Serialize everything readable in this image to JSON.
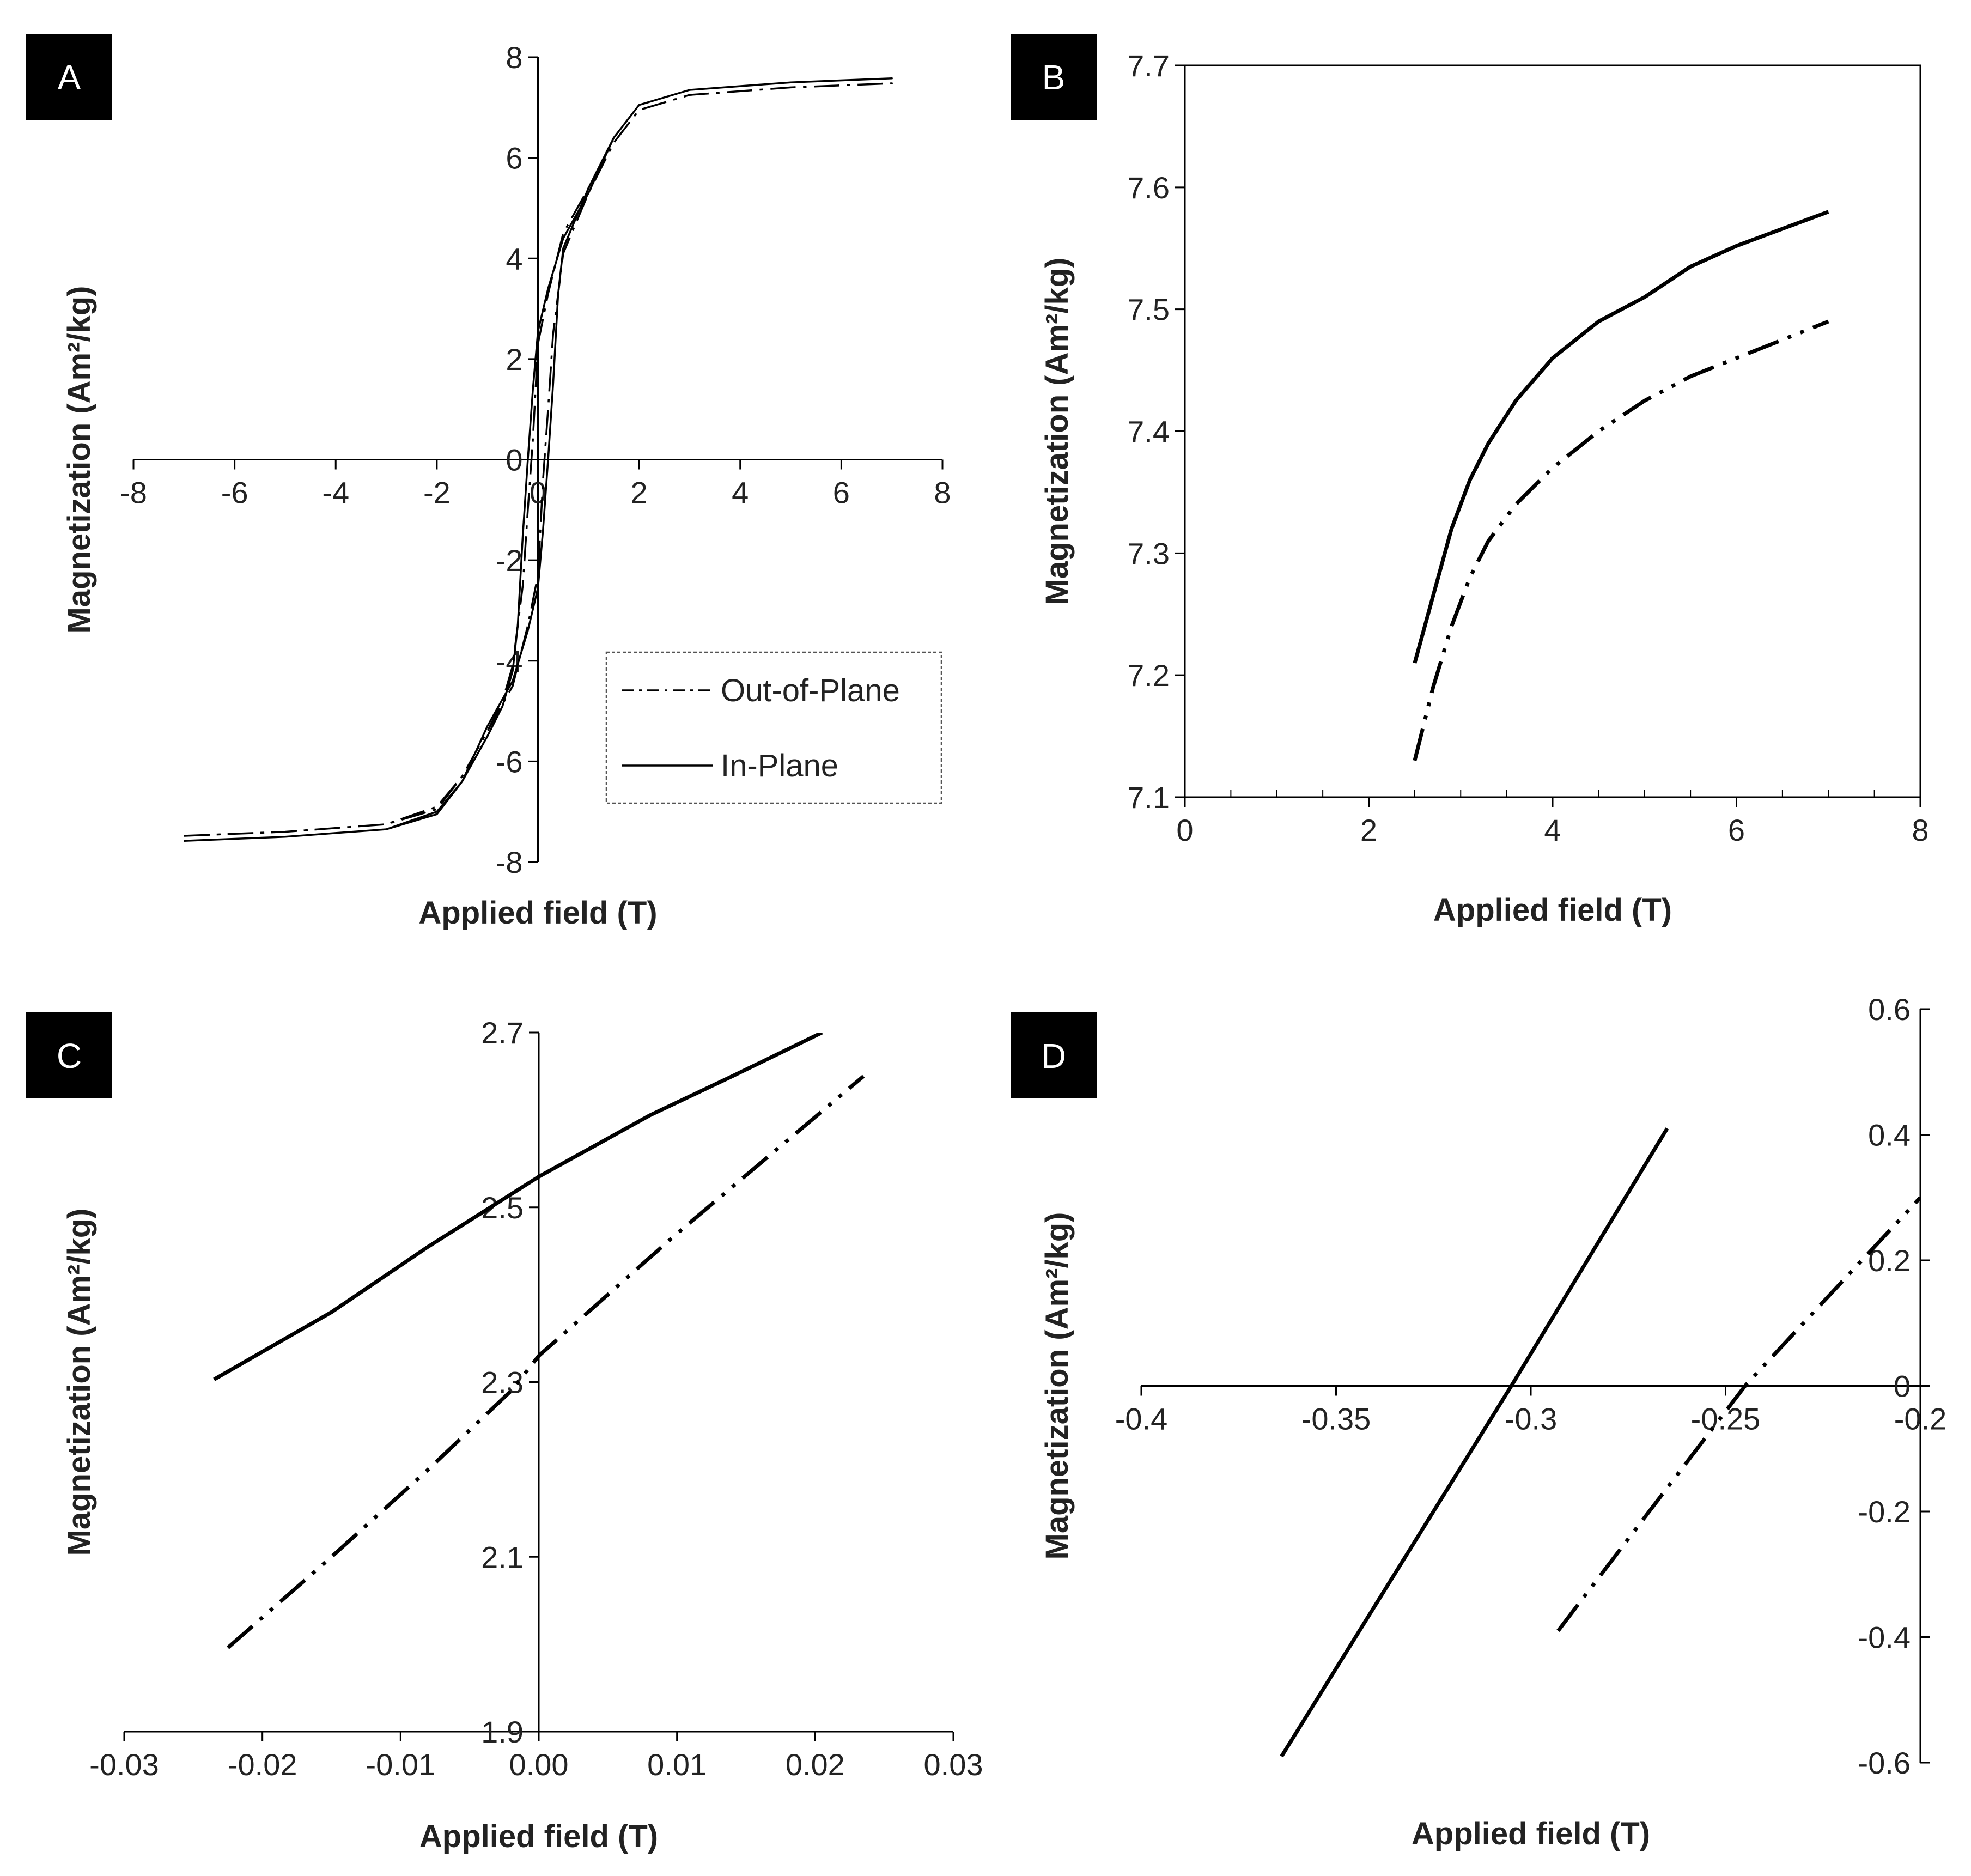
{
  "figure": {
    "colors": {
      "line": "#000000",
      "axis": "#000000",
      "badge_bg": "#000000",
      "badge_text": "#ffffff",
      "legend_border": "#555555"
    }
  },
  "chart_data": [
    {
      "panel": "A",
      "type": "line",
      "xlabel": "Applied field (T)",
      "ylabel": "Magnetization (Am²/kg)",
      "xlim": [
        -8,
        8
      ],
      "ylim": [
        -8,
        8
      ],
      "xticks": [
        -8,
        -6,
        -4,
        -2,
        0,
        2,
        4,
        6,
        8
      ],
      "yticks": [
        -8,
        -6,
        -4,
        -2,
        0,
        2,
        4,
        6,
        8
      ],
      "x_tick_labels": [
        "-8",
        "-6",
        "-4",
        "-2",
        "0",
        "2",
        "4",
        "6",
        "8"
      ],
      "y_tick_labels": [
        "-8",
        "-6",
        "-4",
        "-2",
        "0",
        "2",
        "4",
        "6",
        "8"
      ],
      "axes_cross_at_origin": true,
      "box": false,
      "legend": {
        "position": "bottom-right",
        "entries": [
          "Out-of-Plane",
          "In-Plane"
        ]
      },
      "series": [
        {
          "name": "Out-of-Plane",
          "style": "dash-dot",
          "x": [
            -7,
            -5,
            -3,
            -2,
            -1.5,
            -1,
            -0.7,
            -0.5,
            -0.3,
            -0.2,
            -0.1,
            0,
            0.2,
            0.5,
            1,
            1.5,
            2,
            3,
            5,
            7,
            7,
            5,
            3,
            2,
            1.5,
            1,
            0.5,
            0.3,
            0.2,
            0.1,
            0,
            -0.2,
            -0.5,
            -1,
            -1.5,
            -2,
            -3,
            -5,
            -7
          ],
          "y": [
            -7.48,
            -7.4,
            -7.25,
            -6.9,
            -6.3,
            -5.4,
            -4.8,
            -4.1,
            -2.5,
            -1.0,
            0.4,
            2.3,
            3.3,
            4.5,
            5.4,
            6.3,
            6.95,
            7.25,
            7.4,
            7.48,
            7.48,
            7.4,
            7.25,
            6.95,
            6.3,
            5.3,
            4.1,
            2.5,
            1.0,
            -0.4,
            -2.3,
            -3.3,
            -4.5,
            -5.4,
            -6.3,
            -6.95,
            -7.25,
            -7.4,
            -7.48
          ]
        },
        {
          "name": "In-Plane",
          "style": "solid",
          "x": [
            -7,
            -5,
            -3,
            -2,
            -1.5,
            -1,
            -0.7,
            -0.5,
            -0.4,
            -0.3,
            -0.2,
            -0.1,
            0,
            0.2,
            0.5,
            1,
            1.5,
            2,
            3,
            5,
            7,
            7,
            5,
            3,
            2,
            1.5,
            1,
            0.5,
            0.4,
            0.3,
            0.2,
            0.1,
            0,
            -0.2,
            -0.5,
            -1,
            -1.5,
            -2,
            -3,
            -5,
            -7
          ],
          "y": [
            -7.58,
            -7.5,
            -7.35,
            -7.0,
            -6.4,
            -5.5,
            -4.9,
            -4.2,
            -3.3,
            -1.5,
            0.0,
            1.4,
            2.55,
            3.4,
            4.4,
            5.3,
            6.4,
            7.05,
            7.35,
            7.5,
            7.58,
            7.58,
            7.5,
            7.35,
            7.05,
            6.4,
            5.4,
            4.2,
            3.3,
            1.5,
            0.0,
            -1.4,
            -2.55,
            -3.4,
            -4.4,
            -5.3,
            -6.4,
            -7.05,
            -7.35,
            -7.5,
            -7.58
          ]
        }
      ]
    },
    {
      "panel": "B",
      "type": "line",
      "xlabel": "Applied field (T)",
      "ylabel": "Magnetization (Am²/kg)",
      "xlim": [
        0,
        8
      ],
      "ylim": [
        7.1,
        7.7
      ],
      "xticks": [
        0,
        2,
        4,
        6,
        8
      ],
      "yticks": [
        7.1,
        7.2,
        7.3,
        7.4,
        7.5,
        7.6,
        7.7
      ],
      "x_tick_labels": [
        "0",
        "2",
        "4",
        "6",
        "8"
      ],
      "y_tick_labels": [
        "7.1",
        "7.2",
        "7.3",
        "7.4",
        "7.5",
        "7.6",
        "7.7"
      ],
      "axes_cross_at_origin": false,
      "box": true,
      "series": [
        {
          "name": "In-Plane",
          "style": "solid",
          "x": [
            2.5,
            2.7,
            2.9,
            3.1,
            3.3,
            3.6,
            4.0,
            4.5,
            5.0,
            5.5,
            6.0,
            6.5,
            7.0
          ],
          "y": [
            7.21,
            7.265,
            7.32,
            7.36,
            7.39,
            7.425,
            7.46,
            7.49,
            7.51,
            7.535,
            7.552,
            7.566,
            7.58
          ]
        },
        {
          "name": "Out-of-Plane",
          "style": "dash-dot-dot",
          "x": [
            2.5,
            2.7,
            2.9,
            3.1,
            3.3,
            3.6,
            4.0,
            4.5,
            5.0,
            5.5,
            6.0,
            6.5,
            7.0
          ],
          "y": [
            7.13,
            7.19,
            7.24,
            7.28,
            7.31,
            7.34,
            7.37,
            7.4,
            7.425,
            7.445,
            7.46,
            7.475,
            7.49
          ]
        }
      ]
    },
    {
      "panel": "C",
      "type": "line",
      "xlabel": "Applied field (T)",
      "ylabel": "Magnetization (Am²/kg)",
      "xlim": [
        -0.03,
        0.03
      ],
      "ylim": [
        1.9,
        2.7
      ],
      "xticks": [
        -0.03,
        -0.02,
        -0.01,
        0,
        0.01,
        0.02,
        0.03
      ],
      "yticks": [
        1.9,
        2.1,
        2.3,
        2.5,
        2.7
      ],
      "x_tick_labels": [
        "-0.03",
        "-0.02",
        "-0.01",
        "0.00",
        "0.01",
        "0.02",
        "0.03"
      ],
      "y_tick_labels": [
        "1.9",
        "2.1",
        "2.3",
        "2.5",
        "2.7"
      ],
      "axes_cross_at_origin": true,
      "box": false,
      "series": [
        {
          "name": "In-Plane",
          "style": "solid",
          "x": [
            -0.0235,
            -0.015,
            -0.008,
            -0.002,
            0,
            0.004,
            0.008,
            0.014,
            0.0205
          ],
          "y": [
            2.303,
            2.38,
            2.455,
            2.515,
            2.535,
            2.57,
            2.605,
            2.65,
            2.7
          ]
        },
        {
          "name": "Out-of-Plane",
          "style": "dash-dot-dot",
          "x": [
            -0.0225,
            -0.015,
            -0.008,
            -0.002,
            0,
            0.005,
            0.01,
            0.016,
            0.0235
          ],
          "y": [
            1.996,
            2.1,
            2.2,
            2.29,
            2.33,
            2.4,
            2.47,
            2.55,
            2.65
          ]
        }
      ]
    },
    {
      "panel": "D",
      "type": "line",
      "xlabel": "Applied field (T)",
      "ylabel": "Magnetization (Am²/kg)",
      "xlim": [
        -0.4,
        -0.2
      ],
      "ylim": [
        -0.6,
        0.6
      ],
      "xticks": [
        -0.4,
        -0.35,
        -0.3,
        -0.25,
        -0.2
      ],
      "yticks": [
        -0.6,
        -0.4,
        -0.2,
        0,
        0.2,
        0.4,
        0.6
      ],
      "x_tick_labels": [
        "-0.4",
        "-0.35",
        "-0.3",
        "-0.25",
        "-0.2"
      ],
      "y_tick_labels": [
        "-0.6",
        "-0.4",
        "-0.2",
        "0",
        "0.2",
        "0.4",
        "0.6"
      ],
      "axes_cross_at_origin": true,
      "box": false,
      "yaxis_side": "right",
      "series": [
        {
          "name": "In-Plane",
          "style": "solid",
          "x": [
            -0.364,
            -0.305,
            -0.265
          ],
          "y": [
            -0.59,
            0.0,
            0.41
          ]
        },
        {
          "name": "Out-of-Plane",
          "style": "dash-dot-dot",
          "x": [
            -0.293,
            -0.245,
            -0.2
          ],
          "y": [
            -0.39,
            0.0,
            0.3
          ]
        }
      ]
    }
  ]
}
